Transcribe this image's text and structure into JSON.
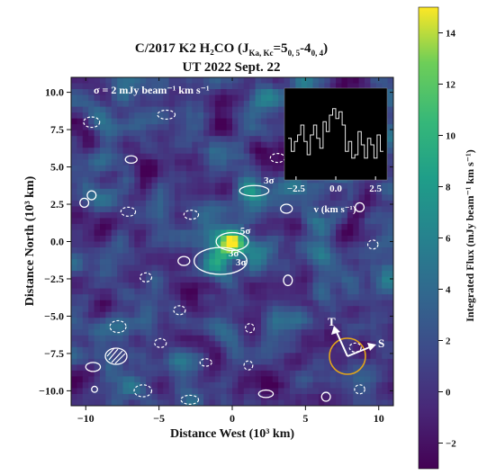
{
  "chart_data": {
    "type": "heatmap",
    "title_line1": "C/2017 K2 H₂CO (J",
    "title_sub": "Ka, Kc",
    "title_line1_rest": "=5",
    "title_sub2": "0, 5",
    "title_line1_rest2": "-4",
    "title_sub3": "0, 4",
    "title_close": ")",
    "title_line2": "UT 2022 Sept. 22",
    "xlabel": "Distance West (10³ km)",
    "ylabel": "Distance North (10³ km)",
    "xlim": [
      -11,
      11
    ],
    "ylim": [
      -11,
      11
    ],
    "x_ticks": [
      -10,
      -5,
      0,
      5,
      10
    ],
    "y_ticks": [
      10.0,
      7.5,
      5.0,
      2.5,
      0.0,
      -2.5,
      -5.0,
      -7.5,
      -10.0
    ],
    "y_tick_labels": [
      "10.0",
      "7.5",
      "5.0",
      "2.5",
      "0.0",
      "−2.5",
      "−5.0",
      "−7.5",
      "−10.0"
    ],
    "x_tick_labels": [
      "−10",
      "−5",
      "0",
      "5",
      "10"
    ],
    "colorbar": {
      "label": "Integrated Flux (mJy beam⁻¹ km s⁻¹)",
      "min": -3,
      "max": 15,
      "ticks": [
        14,
        12,
        10,
        8,
        6,
        4,
        2,
        0,
        -2
      ],
      "tick_labels": [
        "14",
        "12",
        "10",
        "8",
        "6",
        "4",
        "2",
        "0",
        "−2"
      ],
      "colormap": "viridis"
    },
    "sigma_note": "σ = 2 mJy beam⁻¹ km s⁻¹",
    "contour_labels": [
      {
        "text": "3σ",
        "x": 2.5,
        "y": 3.9
      },
      {
        "text": "5σ",
        "x": 0.9,
        "y": 0.5
      },
      {
        "text": "3σ",
        "x": 0.1,
        "y": -1.0
      },
      {
        "text": "3σ",
        "x": 0.6,
        "y": -1.6
      }
    ],
    "peaks": [
      {
        "x": 0.0,
        "y": 0.0,
        "amp": 14
      },
      {
        "x": 1.5,
        "y": 3.4,
        "amp": 8
      },
      {
        "x": -1.2,
        "y": -1.5,
        "amp": 7
      }
    ],
    "inset": {
      "xlabel": "v (km s⁻¹)",
      "xlim": [
        -3,
        3
      ],
      "x_ticks": [
        -2.5,
        0.0,
        2.5
      ],
      "x_tick_labels": [
        "−2.5",
        "0.0",
        "2.5"
      ],
      "spectrum_v": [
        -3.0,
        -2.8,
        -2.6,
        -2.4,
        -2.2,
        -2.0,
        -1.8,
        -1.6,
        -1.4,
        -1.2,
        -1.0,
        -0.8,
        -0.6,
        -0.4,
        -0.2,
        0.0,
        0.2,
        0.4,
        0.6,
        0.8,
        1.0,
        1.2,
        1.4,
        1.6,
        1.8,
        2.0,
        2.2,
        2.4,
        2.6,
        2.8
      ],
      "spectrum_flux": [
        0.35,
        0.15,
        0.3,
        0.4,
        0.55,
        0.3,
        0.1,
        0.4,
        0.55,
        0.35,
        0.2,
        0.6,
        0.45,
        0.7,
        0.8,
        0.65,
        0.75,
        0.55,
        0.15,
        0.3,
        0.05,
        0.1,
        0.45,
        0.25,
        0.05,
        0.35,
        0.25,
        0.05,
        0.4,
        0.15
      ],
      "ylim": [
        -0.2,
        1.0
      ]
    },
    "compass": {
      "labels": [
        "T",
        "S"
      ],
      "circle_color": "#e3a51a"
    },
    "colors": {
      "positive_contour": "#ffffff",
      "negative_contour": "#ffffff"
    }
  }
}
